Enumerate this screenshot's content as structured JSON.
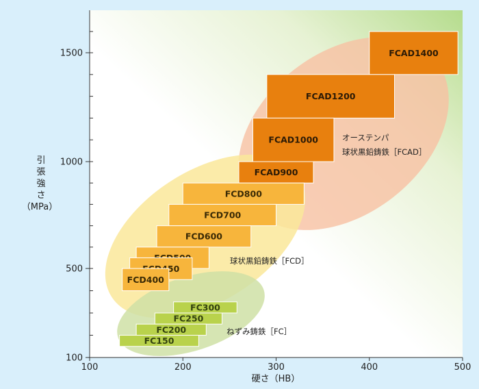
{
  "chart_data": {
    "type": "range-box",
    "xlabel": "硬さ（HB）",
    "ylabel_lines": [
      "引",
      "張",
      "強",
      "さ",
      "（MPa）"
    ],
    "xlim": [
      100,
      500
    ],
    "xticks": [
      100,
      200,
      300,
      400,
      500
    ],
    "yticks": [
      100,
      500,
      1000,
      1500
    ],
    "colors": {
      "background": "#d9effb",
      "fcad_box": "#e8800e",
      "fcd_box": "#f7b53c",
      "fc_box": "#b9d24c",
      "fcad_ellipse": "#f7c1a3",
      "fcd_ellipse": "#fae79a",
      "fc_ellipse": "#cfe0a6",
      "plot_corner": "#b5dc8d"
    },
    "groups": [
      {
        "id": "fcad",
        "label_lines": [
          "オーステンパ",
          "球状黒鉛鋳鉄［FCAD］"
        ],
        "items": [
          {
            "name": "FCAD1400",
            "hb": [
              400,
              495
            ],
            "mpa": [
              1400,
              1600
            ]
          },
          {
            "name": "FCAD1200",
            "hb": [
              290,
              427
            ],
            "mpa": [
              1200,
              1400
            ]
          },
          {
            "name": "FCAD1000",
            "hb": [
              275,
              362
            ],
            "mpa": [
              1000,
              1200
            ]
          },
          {
            "name": "FCAD900",
            "hb": [
              260,
              340
            ],
            "mpa": [
              900,
              1000
            ]
          }
        ]
      },
      {
        "id": "fcd",
        "label_lines": [
          "球状黒鉛鋳鉄［FCD］"
        ],
        "items": [
          {
            "name": "FCD800",
            "hb": [
              200,
              330
            ],
            "mpa": [
              800,
              900
            ]
          },
          {
            "name": "FCD700",
            "hb": [
              185,
              300
            ],
            "mpa": [
              700,
              800
            ]
          },
          {
            "name": "FCD600",
            "hb": [
              172,
              273
            ],
            "mpa": [
              600,
              700
            ]
          },
          {
            "name": "FCD500",
            "hb": [
              150,
              228
            ],
            "mpa": [
              500,
              600
            ]
          },
          {
            "name": "FCD450",
            "hb": [
              143,
              210
            ],
            "mpa": [
              450,
              550
            ]
          },
          {
            "name": "FCD400",
            "hb": [
              135,
              185
            ],
            "mpa": [
              400,
              500
            ]
          }
        ]
      },
      {
        "id": "fc",
        "label_lines": [
          "ねずみ鋳鉄［FC］"
        ],
        "items": [
          {
            "name": "FC300",
            "hb": [
              190,
              258
            ],
            "mpa": [
              300,
              350
            ]
          },
          {
            "name": "FC250",
            "hb": [
              170,
              242
            ],
            "mpa": [
              250,
              300
            ]
          },
          {
            "name": "FC200",
            "hb": [
              150,
              225
            ],
            "mpa": [
              200,
              250
            ]
          },
          {
            "name": "FC150",
            "hb": [
              132,
              217
            ],
            "mpa": [
              150,
              200
            ]
          }
        ]
      }
    ]
  }
}
